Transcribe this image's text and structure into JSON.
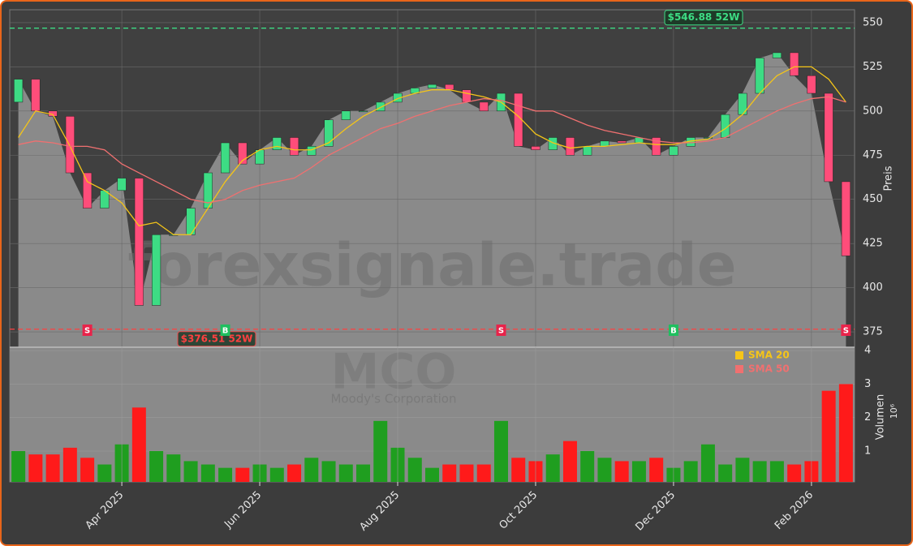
{
  "chart_data": [
    {
      "type": "candlestick",
      "watermark": "forexsignale.trade",
      "ylabel": "Preis",
      "categories": [
        null,
        null,
        null,
        null,
        null,
        null,
        "Apr 2025",
        null,
        null,
        null,
        null,
        null,
        null,
        null,
        "Jun 2025",
        null,
        null,
        null,
        null,
        null,
        null,
        null,
        "Aug 2025",
        null,
        null,
        null,
        null,
        null,
        null,
        null,
        "Oct 2025",
        null,
        null,
        null,
        null,
        null,
        null,
        null,
        "Dec 2025",
        null,
        null,
        null,
        null,
        null,
        null,
        null,
        "Feb 2026",
        null,
        null
      ],
      "open": [
        505,
        518,
        500,
        497,
        465,
        445,
        455,
        462,
        390,
        430,
        430,
        445,
        465,
        482,
        470,
        478,
        485,
        475,
        480,
        495,
        500,
        500,
        505,
        510,
        513,
        515,
        512,
        505,
        500,
        510,
        480,
        478,
        485,
        475,
        480,
        483,
        482,
        485,
        475,
        480,
        485,
        485,
        498,
        510,
        530,
        533,
        520,
        510,
        460
      ],
      "close": [
        518,
        500,
        497,
        465,
        445,
        455,
        462,
        390,
        430,
        430,
        445,
        465,
        482,
        470,
        478,
        485,
        475,
        480,
        495,
        500,
        500,
        505,
        510,
        513,
        515,
        512,
        505,
        500,
        510,
        480,
        478,
        485,
        475,
        480,
        483,
        482,
        485,
        475,
        480,
        485,
        485,
        498,
        510,
        530,
        533,
        520,
        510,
        460,
        418
      ],
      "up_color": "#3ddc84",
      "down_color": "#ff4d7a",
      "area_color": "#8a8a8a",
      "series": [
        {
          "name": "SMA 20",
          "color": "#f5c518",
          "values": [
            485,
            500,
            498,
            480,
            460,
            455,
            448,
            435,
            437,
            430,
            430,
            445,
            460,
            472,
            478,
            480,
            478,
            478,
            482,
            490,
            497,
            502,
            507,
            510,
            512,
            512,
            510,
            508,
            505,
            497,
            487,
            482,
            479,
            480,
            480,
            481,
            482,
            481,
            481,
            483,
            484,
            490,
            498,
            510,
            520,
            525,
            525,
            518,
            505
          ]
        },
        {
          "name": "SMA 50",
          "color": "#f07070",
          "values": [
            481,
            483,
            482,
            480,
            480,
            478,
            470,
            465,
            460,
            455,
            450,
            448,
            450,
            455,
            458,
            460,
            462,
            468,
            475,
            480,
            485,
            490,
            493,
            497,
            500,
            503,
            505,
            507,
            506,
            503,
            500,
            500,
            496,
            492,
            489,
            487,
            485,
            483,
            482,
            482,
            483,
            485,
            490,
            495,
            500,
            504,
            507,
            508,
            505
          ]
        }
      ],
      "signals": [
        null,
        null,
        null,
        null,
        "S",
        null,
        null,
        null,
        null,
        null,
        null,
        null,
        "B",
        null,
        null,
        null,
        null,
        null,
        null,
        null,
        null,
        null,
        null,
        null,
        null,
        null,
        null,
        null,
        "S",
        null,
        null,
        null,
        null,
        null,
        null,
        null,
        null,
        null,
        "B",
        null,
        null,
        null,
        null,
        null,
        null,
        null,
        null,
        null,
        "S"
      ],
      "annotations": [
        {
          "value": 546.88,
          "label": "$546.88 52W",
          "color": "#3ddc84"
        },
        {
          "value": 376.51,
          "label": "$376.51 52W",
          "color": "#ff4040"
        }
      ],
      "ylim": [
        366.3,
        557.3
      ],
      "yticks": [
        375,
        400,
        425,
        450,
        475,
        500,
        525,
        550
      ],
      "grid": true
    },
    {
      "type": "bar",
      "watermark": "MCO",
      "subtitle": "Moody's Corporation",
      "ylabel": "Volumen",
      "multiplier": "10⁶",
      "categories": [
        null,
        null,
        null,
        null,
        null,
        null,
        "Apr 2025",
        null,
        null,
        null,
        null,
        null,
        null,
        null,
        "Jun 2025",
        null,
        null,
        null,
        null,
        null,
        null,
        null,
        "Aug 2025",
        null,
        null,
        null,
        null,
        null,
        null,
        null,
        "Oct 2025",
        null,
        null,
        null,
        null,
        null,
        null,
        null,
        "Dec 2025",
        null,
        null,
        null,
        null,
        null,
        null,
        null,
        "Feb 2026",
        null,
        null
      ],
      "values": [
        1.0,
        0.9,
        0.9,
        1.1,
        0.8,
        0.6,
        1.2,
        2.3,
        1.0,
        0.9,
        0.7,
        0.6,
        0.5,
        0.5,
        0.6,
        0.5,
        0.6,
        0.8,
        0.7,
        0.6,
        0.6,
        1.9,
        1.1,
        0.8,
        0.5,
        0.6,
        0.6,
        0.6,
        1.9,
        0.8,
        0.7,
        0.9,
        1.3,
        1.0,
        0.8,
        0.7,
        0.7,
        0.8,
        0.5,
        0.7,
        1.2,
        0.6,
        0.8,
        0.7,
        0.7,
        0.6,
        0.7,
        2.8,
        3.0
      ],
      "up_color": "#1f9e1f",
      "down_color": "#ff1a1a",
      "ylim": [
        0.08,
        4.1
      ],
      "yticks": [
        1,
        2,
        3,
        4
      ],
      "grid": true
    }
  ]
}
